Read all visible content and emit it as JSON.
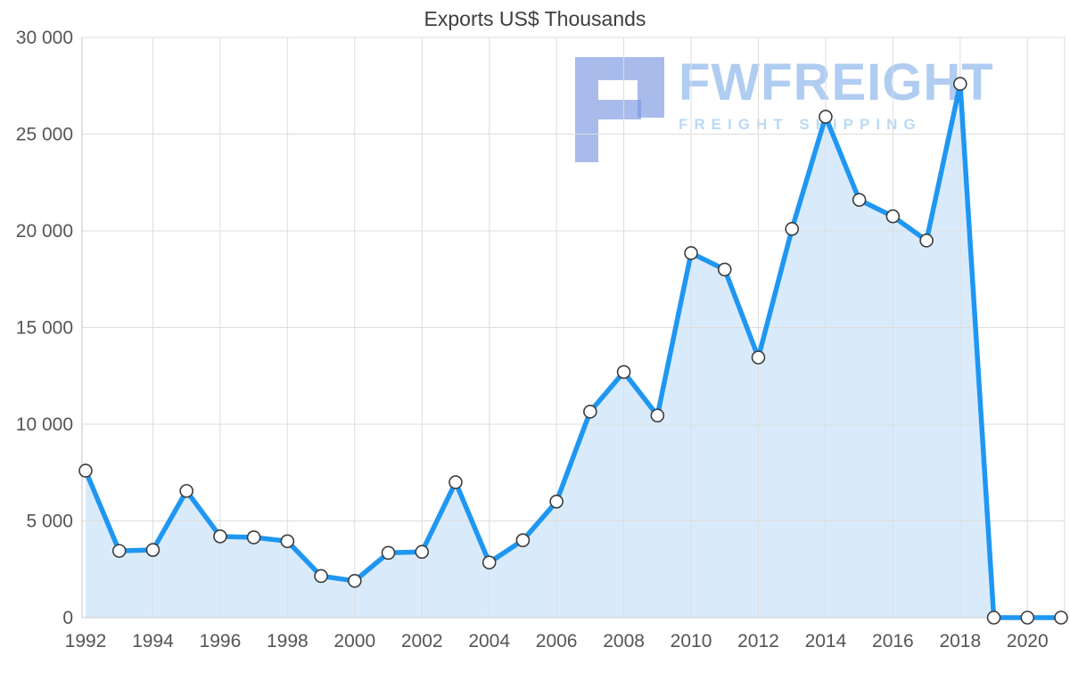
{
  "page": {
    "title": "Exports US$ Thousands"
  },
  "watermark": {
    "brand": "FWFREIGHT",
    "tagline": "FREIGHT SHIPPING"
  },
  "chart_data": {
    "type": "area",
    "title": "Exports US$ Thousands",
    "x": [
      1992,
      1993,
      1994,
      1995,
      1996,
      1997,
      1998,
      1999,
      2000,
      2001,
      2002,
      2003,
      2004,
      2005,
      2006,
      2007,
      2008,
      2009,
      2010,
      2011,
      2012,
      2013,
      2014,
      2015,
      2016,
      2017,
      2018,
      2019,
      2020,
      2021
    ],
    "values": [
      7600,
      3450,
      3500,
      6550,
      4200,
      4150,
      3950,
      2150,
      1900,
      3350,
      3400,
      7000,
      2850,
      4000,
      6000,
      10650,
      12700,
      10450,
      18850,
      18000,
      13450,
      20100,
      25900,
      21600,
      20750,
      19500,
      27600,
      0,
      0,
      0
    ],
    "xticks": [
      1992,
      1994,
      1996,
      1998,
      2000,
      2002,
      2004,
      2006,
      2008,
      2010,
      2012,
      2014,
      2016,
      2018,
      2020
    ],
    "yticks": {
      "values": [
        0,
        5000,
        10000,
        15000,
        20000,
        25000,
        30000
      ],
      "labels": [
        "0",
        "5 000",
        "10 000",
        "15 000",
        "20 000",
        "25 000",
        "30 000"
      ]
    },
    "ylim": [
      0,
      30000
    ],
    "xlabel": "",
    "ylabel": "",
    "grid": true,
    "legend": "none",
    "colors": {
      "line": "#1f97f2",
      "area": "#d9ebfb",
      "marker_fill": "#ffffff",
      "marker_stroke": "#3c3c3c",
      "gridline": "#dddddd",
      "axis": "#c4c4c4"
    }
  }
}
